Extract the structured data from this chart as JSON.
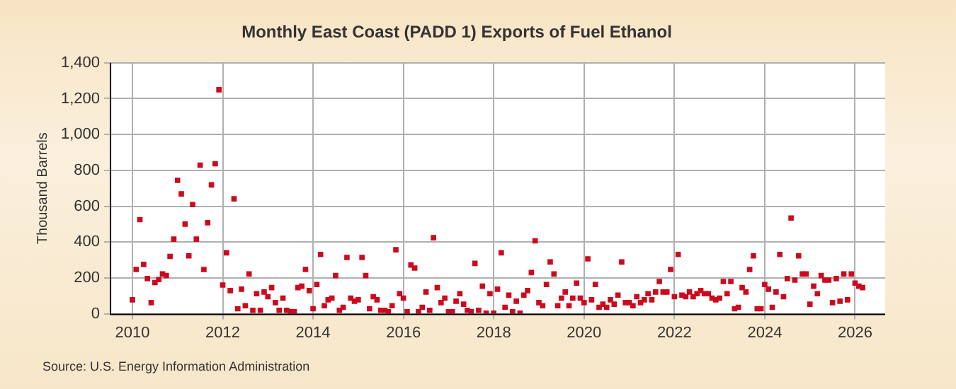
{
  "chart_data": {
    "type": "scatter",
    "title": "Monthly East Coast (PADD 1) Exports of Fuel Ethanol",
    "ylabel": "Thousand Barrels",
    "annotations": [
      "Source: U.S. Energy Information Administration"
    ],
    "x": [
      "2010-01",
      "2010-02",
      "2010-03",
      "2010-04",
      "2010-05",
      "2010-06",
      "2010-07",
      "2010-08",
      "2010-09",
      "2010-10",
      "2010-11",
      "2010-12",
      "2011-01",
      "2011-02",
      "2011-03",
      "2011-04",
      "2011-05",
      "2011-06",
      "2011-07",
      "2011-08",
      "2011-09",
      "2011-10",
      "2011-11",
      "2011-12",
      "2012-01",
      "2012-02",
      "2012-03",
      "2012-04",
      "2012-05",
      "2012-06",
      "2012-07",
      "2012-08",
      "2012-09",
      "2012-10",
      "2012-11",
      "2012-12",
      "2013-01",
      "2013-02",
      "2013-03",
      "2013-04",
      "2013-05",
      "2013-06",
      "2013-07",
      "2013-08",
      "2013-09",
      "2013-10",
      "2013-11",
      "2013-12",
      "2014-01",
      "2014-02",
      "2014-03",
      "2014-04",
      "2014-05",
      "2014-06",
      "2014-07",
      "2014-08",
      "2014-09",
      "2014-10",
      "2014-11",
      "2014-12",
      "2015-01",
      "2015-02",
      "2015-03",
      "2015-04",
      "2015-05",
      "2015-06",
      "2015-07",
      "2015-08",
      "2015-09",
      "2015-10",
      "2015-11",
      "2015-12",
      "2016-01",
      "2016-02",
      "2016-03",
      "2016-04",
      "2016-05",
      "2016-06",
      "2016-07",
      "2016-08",
      "2016-09",
      "2016-10",
      "2016-11",
      "2016-12",
      "2017-01",
      "2017-02",
      "2017-03",
      "2017-04",
      "2017-05",
      "2017-06",
      "2017-07",
      "2017-08",
      "2017-09",
      "2017-10",
      "2017-11",
      "2017-12",
      "2018-01",
      "2018-02",
      "2018-03",
      "2018-04",
      "2018-05",
      "2018-06",
      "2018-07",
      "2018-08",
      "2018-09",
      "2018-10",
      "2018-11",
      "2018-12",
      "2019-01",
      "2019-02",
      "2019-03",
      "2019-04",
      "2019-05",
      "2019-06",
      "2019-07",
      "2019-08",
      "2019-09",
      "2019-10",
      "2019-11",
      "2019-12",
      "2020-01",
      "2020-02",
      "2020-03",
      "2020-04",
      "2020-05",
      "2020-06",
      "2020-07",
      "2020-08",
      "2020-09",
      "2020-10",
      "2020-11",
      "2020-12",
      "2021-01",
      "2021-02",
      "2021-03",
      "2021-04",
      "2021-05",
      "2021-06",
      "2021-07",
      "2021-08",
      "2021-09",
      "2021-10",
      "2021-11",
      "2021-12",
      "2022-01",
      "2022-02",
      "2022-03",
      "2022-04",
      "2022-05",
      "2022-06",
      "2022-07",
      "2022-08",
      "2022-09",
      "2022-10",
      "2022-11",
      "2022-12",
      "2023-01",
      "2023-02",
      "2023-03",
      "2023-04",
      "2023-05",
      "2023-06",
      "2023-07",
      "2023-08",
      "2023-09",
      "2023-10",
      "2023-11",
      "2023-12",
      "2024-01",
      "2024-02",
      "2024-03",
      "2024-04",
      "2024-05",
      "2024-06",
      "2024-07",
      "2024-08",
      "2024-09",
      "2024-10",
      "2024-11",
      "2024-12",
      "2025-01",
      "2025-02",
      "2025-03",
      "2025-04",
      "2025-05",
      "2025-06",
      "2025-07",
      "2025-08",
      "2025-09",
      "2025-10",
      "2025-11",
      "2025-12",
      "2026-01",
      "2026-02",
      "2026-03"
    ],
    "series": [
      {
        "color": "#cc0a1e",
        "values": [
          78,
          247,
          525,
          275,
          196,
          62,
          174,
          191,
          222,
          213,
          320,
          416,
          744,
          669,
          500,
          323,
          609,
          416,
          829,
          247,
          508,
          719,
          837,
          1250,
          160,
          340,
          129,
          641,
          28,
          137,
          45,
          222,
          19,
          112,
          19,
          121,
          95,
          146,
          62,
          19,
          87,
          19,
          11,
          11,
          146,
          154,
          247,
          129,
          28,
          163,
          331,
          45,
          78,
          87,
          213,
          19,
          36,
          314,
          87,
          70,
          78,
          314,
          213,
          28,
          95,
          78,
          19,
          19,
          11,
          45,
          357,
          112,
          87,
          11,
          272,
          255,
          11,
          36,
          121,
          19,
          424,
          146,
          62,
          87,
          11,
          11,
          70,
          112,
          53,
          19,
          11,
          281,
          19,
          154,
          3,
          112,
          3,
          137,
          340,
          36,
          104,
          11,
          70,
          3,
          104,
          129,
          230,
          407,
          62,
          45,
          163,
          289,
          222,
          45,
          87,
          121,
          45,
          87,
          171,
          87,
          62,
          306,
          78,
          163,
          36,
          53,
          36,
          78,
          53,
          104,
          289,
          62,
          62,
          45,
          95,
          62,
          78,
          112,
          78,
          121,
          180,
          121,
          121,
          247,
          95,
          331,
          104,
          95,
          121,
          95,
          112,
          129,
          112,
          112,
          87,
          78,
          87,
          180,
          112,
          180,
          28,
          36,
          146,
          121,
          247,
          323,
          28,
          28,
          163,
          137,
          36,
          121,
          331,
          95,
          196,
          534,
          188,
          323,
          222,
          222,
          53,
          154,
          112,
          213,
          188,
          188,
          62,
          196,
          70,
          222,
          78,
          222,
          171,
          154,
          146
        ]
      }
    ],
    "xlim": [
      "2009-07",
      "2026-09"
    ],
    "xticks": [
      "2010",
      "2012",
      "2014",
      "2016",
      "2018",
      "2020",
      "2022",
      "2024",
      "2026"
    ],
    "ylim": [
      0,
      1400
    ],
    "yticks": [
      0,
      200,
      400,
      600,
      800,
      {
        "value": 1000,
        "label": "1,000"
      },
      {
        "value": 1200,
        "label": "1,200"
      },
      {
        "value": 1400,
        "label": "1,400"
      }
    ],
    "grid": true,
    "marker": "square"
  }
}
